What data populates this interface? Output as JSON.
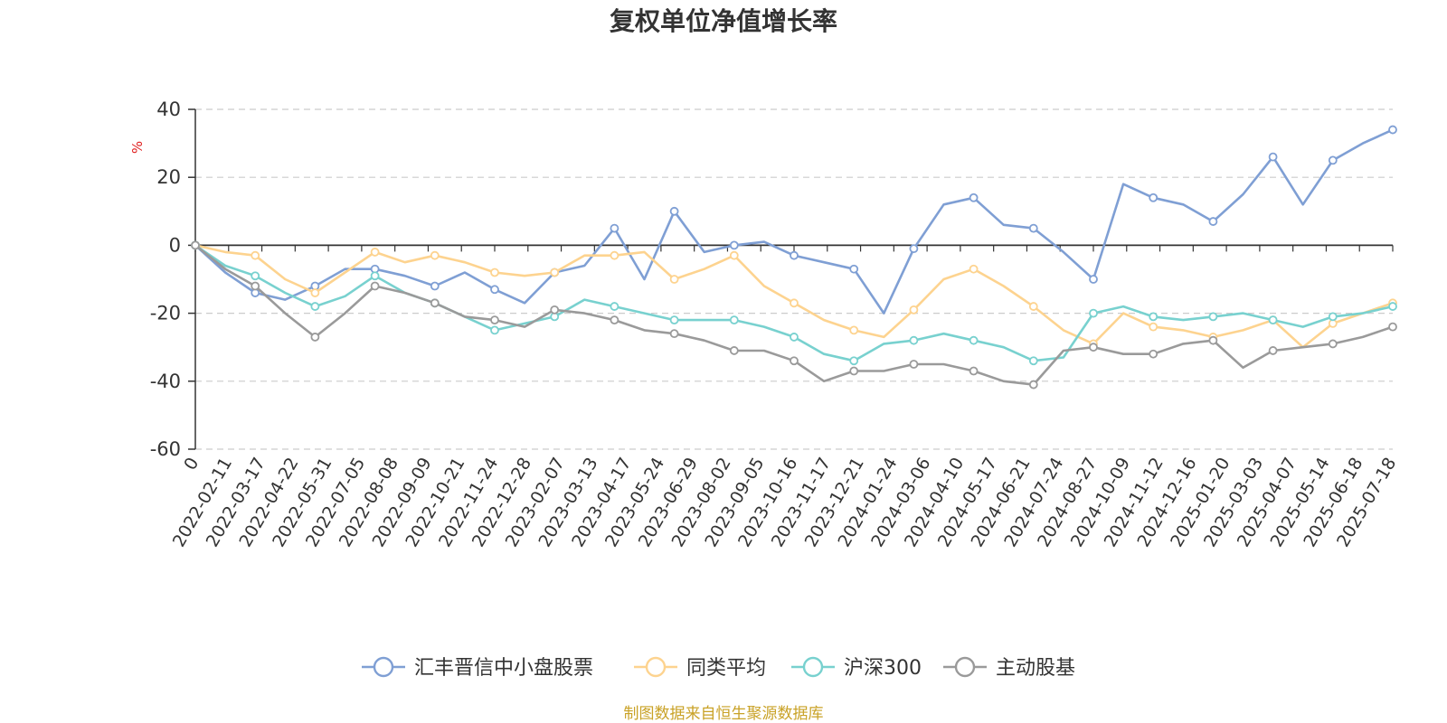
{
  "chart_data": {
    "type": "line",
    "title": "复权单位净值增长率",
    "unit_label": "%",
    "ylim": [
      -60,
      40
    ],
    "y_ticks": [
      "40",
      "20",
      "0",
      "-20",
      "-40",
      "-60"
    ],
    "x_tick_labels": [
      "0",
      "2022-02-11",
      "2022-03-17",
      "2022-04-22",
      "2022-05-31",
      "2022-07-05",
      "2022-08-08",
      "2022-09-09",
      "2022-10-21",
      "2022-11-24",
      "2022-12-28",
      "2023-02-07",
      "2023-03-13",
      "2023-04-17",
      "2023-05-24",
      "2023-06-29",
      "2023-08-02",
      "2023-09-05",
      "2023-10-16",
      "2023-11-17",
      "2023-12-21",
      "2024-01-24",
      "2024-03-06",
      "2024-04-10",
      "2024-05-17",
      "2024-06-21",
      "2024-07-24",
      "2024-08-27",
      "2024-10-09",
      "2024-11-12",
      "2024-12-16",
      "2025-01-20",
      "2025-03-03",
      "2025-04-07",
      "2025-05-14",
      "2025-06-18",
      "2025-07-18"
    ],
    "grid": "dashed-horizontal",
    "legend_position": "bottom",
    "series": [
      {
        "name": "汇丰晋信中小盘股票",
        "color": "#7f9fd4",
        "values": [
          0,
          -8,
          -14,
          -16,
          -12,
          -7,
          -7,
          -9,
          -12,
          -8,
          -13,
          -17,
          -8,
          -6,
          5,
          -10,
          10,
          -2,
          0,
          1,
          -3,
          -5,
          -7,
          -20,
          -1,
          12,
          14,
          6,
          5,
          -2,
          -10,
          18,
          14,
          12,
          7,
          15,
          26,
          12,
          25,
          30,
          34
        ]
      },
      {
        "name": "同类平均",
        "color": "#fdd38f",
        "values": [
          0,
          -2,
          -3,
          -10,
          -14,
          -8,
          -2,
          -5,
          -3,
          -5,
          -8,
          -9,
          -8,
          -3,
          -3,
          -2,
          -10,
          -7,
          -3,
          -12,
          -17,
          -22,
          -25,
          -27,
          -19,
          -10,
          -7,
          -12,
          -18,
          -25,
          -29,
          -20,
          -24,
          -25,
          -27,
          -25,
          -22,
          -30,
          -23,
          -20,
          -17
        ]
      },
      {
        "name": "沪深300",
        "color": "#78d1cf",
        "values": [
          0,
          -6,
          -9,
          -14,
          -18,
          -15,
          -9,
          -14,
          -17,
          -21,
          -25,
          -23,
          -21,
          -16,
          -18,
          -20,
          -22,
          -22,
          -22,
          -24,
          -27,
          -32,
          -34,
          -29,
          -28,
          -26,
          -28,
          -30,
          -34,
          -33,
          -20,
          -18,
          -21,
          -22,
          -21,
          -20,
          -22,
          -24,
          -21,
          -20,
          -18
        ]
      },
      {
        "name": "主动股基",
        "color": "#9a9a9a",
        "values": [
          0,
          -7,
          -12,
          -20,
          -27,
          -20,
          -12,
          -14,
          -17,
          -21,
          -22,
          -24,
          -19,
          -20,
          -22,
          -25,
          -26,
          -28,
          -31,
          -31,
          -34,
          -40,
          -37,
          -37,
          -35,
          -35,
          -37,
          -40,
          -41,
          -31,
          -30,
          -32,
          -32,
          -29,
          -28,
          -36,
          -31,
          -30,
          -29,
          -27,
          -24
        ]
      }
    ]
  },
  "footer": {
    "source": "制图数据来自恒生聚源数据库"
  }
}
